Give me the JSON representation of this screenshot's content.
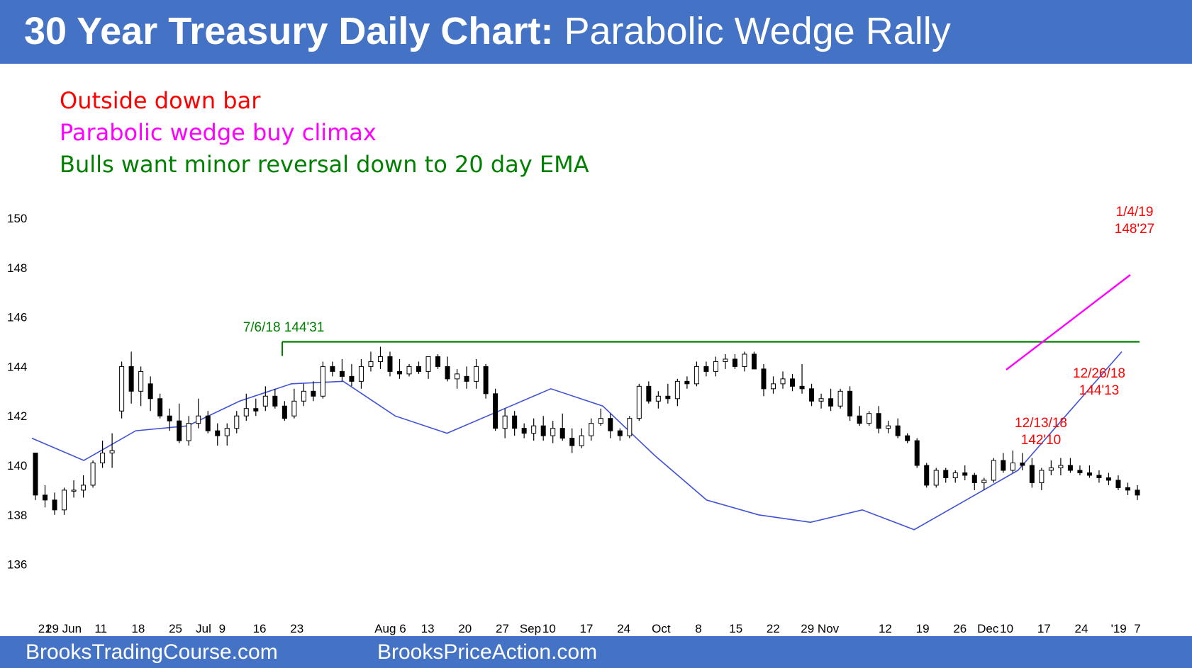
{
  "header": {
    "title_bold": "30 Year Treasury Daily Chart:",
    "title_rest": "Parabolic Wedge Rally"
  },
  "notes": [
    {
      "text": "Outside down bar",
      "color": "#ff0000"
    },
    {
      "text": "Parabolic wedge buy climax",
      "color": "#ff00ff"
    },
    {
      "text": "Bulls want minor reversal down to 20 day EMA",
      "color": "#008000"
    }
  ],
  "footer": {
    "left": "BrooksTradingCourse.com",
    "right": "BrooksPriceAction.com"
  },
  "colors": {
    "bar_fill": "#4472c4",
    "ema": "#3f51d6",
    "resistance": "#008000",
    "wedge": "#ff00ff",
    "annotation": "#ff0000"
  },
  "chart_data": {
    "type": "candlestick",
    "ylim": [
      134.5,
      151
    ],
    "y_ticks": [
      150,
      148,
      146,
      144,
      142,
      140,
      138,
      136
    ],
    "x_labels": [
      {
        "label": "21",
        "idx": 1
      },
      {
        "label": "29 Jun",
        "idx": 3
      },
      {
        "label": "11",
        "idx": 7
      },
      {
        "label": "18",
        "idx": 11
      },
      {
        "label": "25",
        "idx": 15
      },
      {
        "label": "Jul",
        "idx": 18
      },
      {
        "label": "9",
        "idx": 20
      },
      {
        "label": "16",
        "idx": 24
      },
      {
        "label": "23",
        "idx": 28
      },
      {
        "label": "Aug 6",
        "idx": 38
      },
      {
        "label": "13",
        "idx": 42
      },
      {
        "label": "20",
        "idx": 46
      },
      {
        "label": "27",
        "idx": 50
      },
      {
        "label": "Sep",
        "idx": 53
      },
      {
        "label": "10",
        "idx": 55
      },
      {
        "label": "17",
        "idx": 59
      },
      {
        "label": "24",
        "idx": 63
      },
      {
        "label": "Oct",
        "idx": 67
      },
      {
        "label": "8",
        "idx": 71
      },
      {
        "label": "15",
        "idx": 75
      },
      {
        "label": "22",
        "idx": 79
      },
      {
        "label": "29 Nov",
        "idx": 84
      },
      {
        "label": "12",
        "idx": 91
      },
      {
        "label": "19",
        "idx": 95
      },
      {
        "label": "26",
        "idx": 99
      },
      {
        "label": "Dec",
        "idx": 102
      },
      {
        "label": "10",
        "idx": 104
      },
      {
        "label": "17",
        "idx": 108
      },
      {
        "label": "24",
        "idx": 112
      },
      {
        "label": "'19",
        "idx": 116
      },
      {
        "label": "7",
        "idx": 118
      }
    ],
    "candles": [
      [
        140.5,
        140.5,
        138.6,
        138.8
      ],
      [
        138.8,
        139.2,
        138.3,
        138.6
      ],
      [
        138.6,
        138.9,
        138.0,
        138.2
      ],
      [
        138.2,
        139.1,
        138.0,
        139.0
      ],
      [
        139.0,
        139.4,
        138.7,
        139.0
      ],
      [
        139.0,
        139.6,
        138.7,
        139.2
      ],
      [
        139.2,
        140.2,
        139.1,
        140.1
      ],
      [
        140.1,
        141.0,
        139.9,
        140.5
      ],
      [
        140.5,
        141.3,
        139.9,
        140.6
      ],
      [
        142.2,
        144.2,
        141.9,
        144.0
      ],
      [
        144.0,
        144.6,
        142.5,
        143.0
      ],
      [
        143.0,
        144.0,
        142.4,
        143.8
      ],
      [
        143.3,
        143.6,
        142.2,
        142.7
      ],
      [
        142.7,
        142.9,
        141.9,
        142.0
      ],
      [
        142.0,
        142.3,
        141.4,
        141.8
      ],
      [
        141.8,
        142.5,
        140.9,
        141.0
      ],
      [
        141.0,
        142.0,
        140.8,
        141.7
      ],
      [
        141.7,
        142.7,
        141.5,
        142.0
      ],
      [
        142.0,
        142.2,
        141.3,
        141.4
      ],
      [
        141.4,
        141.7,
        140.8,
        141.2
      ],
      [
        141.2,
        141.7,
        140.8,
        141.5
      ],
      [
        141.5,
        142.2,
        141.3,
        142.0
      ],
      [
        142.0,
        142.9,
        141.8,
        142.3
      ],
      [
        142.3,
        142.7,
        142.0,
        142.2
      ],
      [
        142.4,
        143.2,
        142.2,
        142.8
      ],
      [
        142.8,
        143.1,
        142.3,
        142.4
      ],
      [
        142.4,
        142.6,
        141.8,
        141.9
      ],
      [
        142.0,
        143.1,
        141.9,
        142.6
      ],
      [
        142.6,
        143.3,
        142.4,
        143.0
      ],
      [
        143.0,
        143.4,
        142.6,
        142.8
      ],
      [
        142.8,
        144.2,
        142.7,
        144.0
      ],
      [
        144.0,
        144.2,
        143.6,
        143.8
      ],
      [
        143.8,
        144.3,
        143.4,
        143.6
      ],
      [
        143.6,
        144.1,
        143.2,
        143.4
      ],
      [
        143.4,
        144.3,
        143.1,
        144.0
      ],
      [
        144.0,
        144.6,
        143.8,
        144.2
      ],
      [
        144.2,
        144.8,
        143.9,
        144.4
      ],
      [
        144.4,
        144.6,
        143.6,
        143.8
      ],
      [
        143.8,
        144.3,
        143.5,
        143.7
      ],
      [
        143.7,
        144.1,
        143.6,
        144.0
      ],
      [
        144.0,
        144.2,
        143.7,
        143.8
      ],
      [
        143.8,
        144.4,
        143.5,
        144.4
      ],
      [
        144.4,
        144.5,
        143.9,
        144.0
      ],
      [
        144.0,
        144.4,
        143.4,
        143.5
      ],
      [
        143.5,
        143.9,
        143.1,
        143.7
      ],
      [
        143.6,
        144.0,
        143.1,
        143.4
      ],
      [
        143.4,
        144.3,
        143.1,
        144.0
      ],
      [
        144.0,
        144.1,
        142.7,
        142.9
      ],
      [
        142.9,
        143.1,
        141.4,
        141.5
      ],
      [
        141.5,
        142.3,
        141.1,
        142.0
      ],
      [
        142.0,
        142.2,
        141.2,
        141.5
      ],
      [
        141.5,
        141.7,
        141.1,
        141.3
      ],
      [
        141.3,
        141.9,
        141.0,
        141.6
      ],
      [
        141.6,
        142.0,
        141.0,
        141.2
      ],
      [
        141.2,
        141.8,
        140.9,
        141.5
      ],
      [
        141.5,
        142.1,
        141.0,
        141.1
      ],
      [
        141.1,
        141.5,
        140.5,
        140.8
      ],
      [
        140.8,
        141.5,
        140.7,
        141.2
      ],
      [
        141.2,
        141.9,
        141.0,
        141.7
      ],
      [
        141.7,
        142.3,
        141.6,
        141.9
      ],
      [
        141.9,
        142.1,
        141.1,
        141.4
      ],
      [
        141.4,
        141.5,
        141.0,
        141.2
      ],
      [
        141.2,
        142.0,
        141.1,
        141.9
      ],
      [
        141.9,
        143.3,
        141.8,
        143.2
      ],
      [
        143.2,
        143.4,
        142.5,
        142.6
      ],
      [
        142.6,
        143.0,
        142.3,
        142.8
      ],
      [
        142.8,
        143.3,
        142.5,
        142.7
      ],
      [
        142.7,
        143.5,
        142.4,
        143.4
      ],
      [
        143.4,
        143.6,
        143.1,
        143.3
      ],
      [
        143.3,
        144.2,
        143.2,
        144.0
      ],
      [
        144.0,
        144.2,
        143.6,
        143.8
      ],
      [
        143.8,
        144.4,
        143.6,
        144.2
      ],
      [
        144.2,
        144.5,
        143.9,
        144.3
      ],
      [
        144.3,
        144.5,
        143.9,
        144.0
      ],
      [
        144.0,
        144.6,
        143.8,
        144.5
      ],
      [
        144.5,
        144.6,
        143.9,
        143.9
      ],
      [
        143.9,
        144.1,
        142.8,
        143.1
      ],
      [
        143.1,
        143.6,
        142.9,
        143.3
      ],
      [
        143.3,
        143.8,
        143.1,
        143.5
      ],
      [
        143.5,
        143.7,
        143.0,
        143.2
      ],
      [
        143.2,
        144.1,
        142.9,
        143.1
      ],
      [
        143.1,
        143.3,
        142.4,
        142.6
      ],
      [
        142.6,
        142.9,
        142.3,
        142.7
      ],
      [
        142.7,
        143.1,
        142.2,
        142.4
      ],
      [
        142.4,
        143.1,
        142.3,
        143.0
      ],
      [
        143.0,
        143.2,
        141.8,
        142.0
      ],
      [
        142.0,
        142.4,
        141.6,
        141.7
      ],
      [
        141.7,
        142.2,
        141.6,
        142.1
      ],
      [
        142.1,
        142.4,
        141.3,
        141.5
      ],
      [
        141.5,
        141.8,
        141.3,
        141.6
      ],
      [
        141.6,
        141.9,
        141.1,
        141.2
      ],
      [
        141.2,
        141.3,
        140.9,
        141.0
      ],
      [
        141.0,
        141.1,
        139.9,
        140.0
      ],
      [
        140.0,
        140.1,
        139.1,
        139.2
      ],
      [
        139.2,
        139.9,
        139.1,
        139.8
      ],
      [
        139.8,
        139.9,
        139.3,
        139.5
      ],
      [
        139.5,
        139.8,
        139.3,
        139.7
      ],
      [
        139.7,
        140.0,
        139.4,
        139.6
      ],
      [
        139.6,
        139.7,
        139.0,
        139.3
      ],
      [
        139.3,
        139.5,
        139.0,
        139.4
      ],
      [
        139.4,
        140.3,
        139.3,
        140.2
      ],
      [
        140.2,
        140.5,
        139.7,
        139.8
      ],
      [
        139.8,
        140.6,
        139.7,
        140.1
      ],
      [
        140.1,
        140.5,
        139.8,
        140.0
      ],
      [
        140.0,
        140.3,
        139.1,
        139.3
      ],
      [
        139.3,
        139.9,
        139.0,
        139.8
      ],
      [
        139.8,
        140.2,
        139.6,
        139.9
      ],
      [
        139.9,
        140.3,
        139.6,
        140.0
      ],
      [
        140.0,
        140.3,
        139.7,
        139.8
      ],
      [
        139.8,
        140.0,
        139.6,
        139.7
      ],
      [
        139.7,
        140.0,
        139.5,
        139.6
      ],
      [
        139.6,
        139.8,
        139.3,
        139.5
      ],
      [
        139.5,
        139.7,
        139.2,
        139.4
      ],
      [
        139.4,
        139.6,
        139.0,
        139.1
      ],
      [
        139.1,
        139.3,
        138.8,
        139.0
      ],
      [
        139.0,
        139.2,
        138.6,
        138.8
      ]
    ],
    "ema_y": [
      141.1,
      140.2,
      141.4,
      141.6,
      142.6,
      143.3,
      143.4,
      142.0,
      141.3,
      142.2,
      143.1,
      142.4,
      140.4,
      138.6,
      138.0,
      137.7,
      138.2,
      137.4,
      138.6,
      139.8,
      142.2,
      144.6
    ],
    "series_note": "",
    "resistance": {
      "value": 145.0,
      "label": "7/6/18 144'31"
    },
    "annotations": [
      {
        "lines": [
          "1/4/19",
          "148'27"
        ]
      },
      {
        "lines": [
          "12/26/18",
          "144'13"
        ]
      },
      {
        "lines": [
          "12/13/18",
          "142'10"
        ]
      }
    ]
  }
}
